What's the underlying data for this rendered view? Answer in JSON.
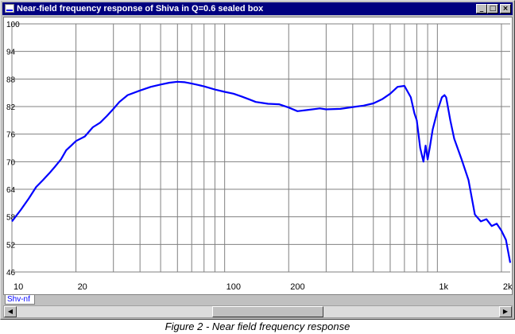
{
  "window": {
    "title": "Near-field frequency response of Shiva in Q=0.6 sealed box",
    "minimize_label": "_",
    "maximize_label": "□",
    "close_label": "×"
  },
  "series_tab": "Shv-nf",
  "caption": "Figure 2 - Near field frequency response",
  "colors": {
    "trace": "#0000ff",
    "grid": "#808080",
    "title_bar": "#000080"
  },
  "chart_data": {
    "type": "line",
    "title": "",
    "xlabel": "",
    "ylabel": "",
    "x_scale": "log",
    "xlim": [
      10,
      2200
    ],
    "ylim": [
      46,
      100
    ],
    "grid": true,
    "x_tick_labels": [
      {
        "value": 10,
        "label": "10"
      },
      {
        "value": 20,
        "label": "20"
      },
      {
        "value": 100,
        "label": "100"
      },
      {
        "value": 200,
        "label": "200"
      },
      {
        "value": 1000,
        "label": "1k"
      },
      {
        "value": 2000,
        "label": "2k"
      }
    ],
    "y_tick_labels": [
      {
        "value": 100,
        "label": "100"
      },
      {
        "value": 94,
        "label": "94"
      },
      {
        "value": 88,
        "label": "88"
      },
      {
        "value": 82,
        "label": "82"
      },
      {
        "value": 76,
        "label": "76"
      },
      {
        "value": 70,
        "label": "70"
      },
      {
        "value": 64,
        "label": "64"
      },
      {
        "value": 58,
        "label": "58"
      },
      {
        "value": 52,
        "label": "52"
      },
      {
        "value": 46,
        "label": "46"
      }
    ],
    "series": [
      {
        "x": [
          10,
          11,
          12,
          13,
          14,
          15,
          16,
          17,
          18,
          19,
          20,
          22,
          24,
          26,
          28,
          30,
          32,
          35,
          40,
          45,
          50,
          55,
          60,
          65,
          70,
          75,
          80,
          90,
          100,
          110,
          120,
          130,
          140,
          150,
          160,
          180,
          200,
          220,
          250,
          280,
          300,
          350,
          400,
          450,
          500,
          550,
          600,
          650,
          700,
          750,
          780,
          800,
          830,
          860,
          880,
          900,
          920,
          950,
          1000,
          1050,
          1080,
          1100,
          1150,
          1200,
          1300,
          1400,
          1500,
          1600,
          1700,
          1800,
          1900,
          2000,
          2100,
          2200
        ],
        "values": [
          57.0,
          59.5,
          62.0,
          64.5,
          66.0,
          67.5,
          69.0,
          70.5,
          72.5,
          73.5,
          74.5,
          75.5,
          77.5,
          78.5,
          80.0,
          81.5,
          83.0,
          84.5,
          85.5,
          86.3,
          86.8,
          87.2,
          87.4,
          87.3,
          87.0,
          86.7,
          86.4,
          85.7,
          85.2,
          84.8,
          84.2,
          83.6,
          83.0,
          82.8,
          82.6,
          82.5,
          81.8,
          81.0,
          81.3,
          81.6,
          81.4,
          81.5,
          81.9,
          82.2,
          82.7,
          83.6,
          84.8,
          86.3,
          86.5,
          84.0,
          80.5,
          79.0,
          73.0,
          70.0,
          73.5,
          70.5,
          73.0,
          77.0,
          81.0,
          84.0,
          84.5,
          84.0,
          79.0,
          75.0,
          70.5,
          66.0,
          58.5,
          57.0,
          57.5,
          56.0,
          56.5,
          55.0,
          53.0,
          48.0
        ]
      }
    ]
  }
}
